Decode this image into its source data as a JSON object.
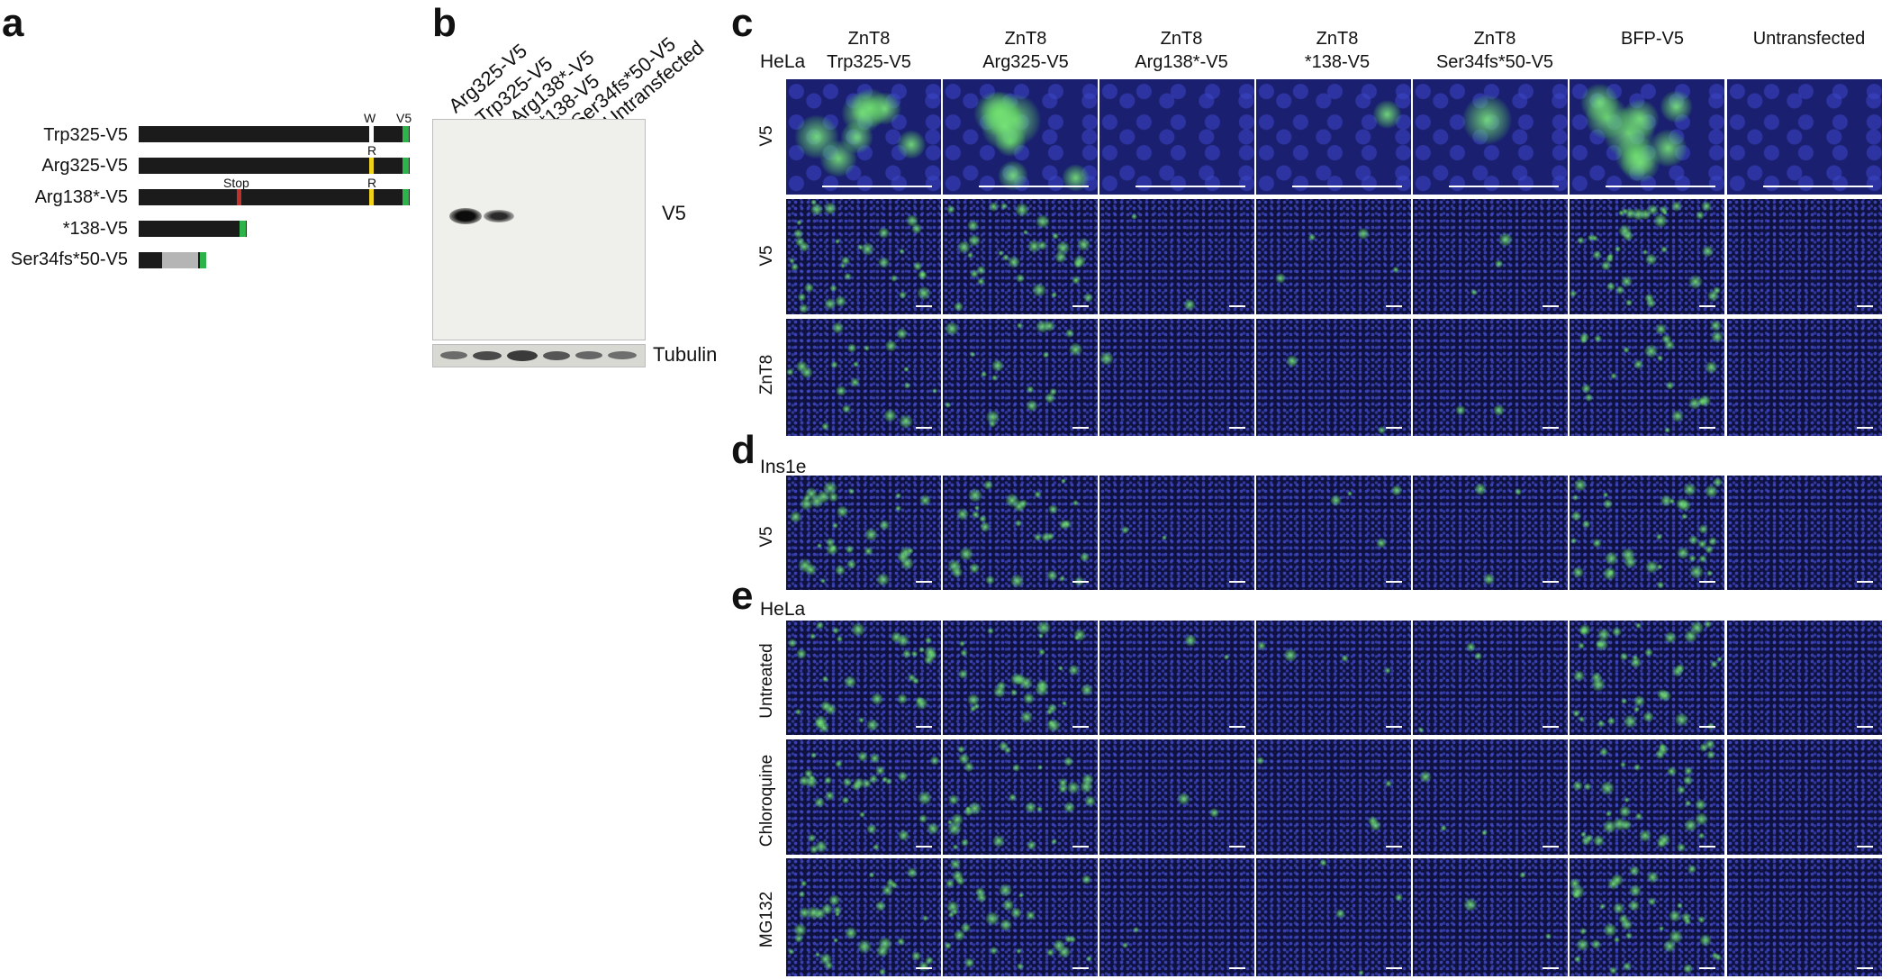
{
  "panel_letters": {
    "a": "a",
    "b": "b",
    "c": "c",
    "d": "d",
    "e": "e"
  },
  "panel_a": {
    "constructs": [
      {
        "label": "Trp325-V5"
      },
      {
        "label": "Arg325-V5"
      },
      {
        "label": "Arg138*-V5"
      },
      {
        "label": "*138-V5"
      },
      {
        "label": "Ser34fs*50-V5"
      }
    ],
    "marks": {
      "w": "W",
      "v5": "V5",
      "r1": "R",
      "stop": "Stop",
      "r2": "R"
    },
    "colors": {
      "bar": "#1b1b1b",
      "v5_tag": "#2db34a",
      "arg": "#f0d21a",
      "trp": "#ffffff",
      "stop": "#c0312b",
      "frameshift": "#b5b5b5"
    }
  },
  "panel_b": {
    "lanes": [
      "Arg325-V5",
      "Trp325-V5",
      "Arg138*-V5",
      "*138-V5",
      "Ser34fs*50-V5",
      "Untransfected"
    ],
    "blot_label": "V5",
    "loading_label": "Tubulin"
  },
  "panel_c": {
    "cell_line": "HeLa",
    "columns": [
      {
        "line1": "ZnT8",
        "line2": "Trp325-V5"
      },
      {
        "line1": "ZnT8",
        "line2": "Arg325-V5"
      },
      {
        "line1": "ZnT8",
        "line2": "Arg138*-V5"
      },
      {
        "line1": "ZnT8",
        "line2": "*138-V5"
      },
      {
        "line1": "ZnT8",
        "line2": "Ser34fs*50-V5"
      },
      {
        "line1": "",
        "line2": "BFP-V5"
      },
      {
        "line1": "",
        "line2": "Untransfected"
      }
    ],
    "rows": [
      "V5",
      "V5",
      "ZnT8"
    ]
  },
  "panel_d": {
    "cell_line": "Ins1e",
    "rows": [
      "V5"
    ]
  },
  "panel_e": {
    "cell_line": "HeLa",
    "rows": [
      "Untreated",
      "Chloroquine",
      "MG132"
    ]
  },
  "signal": [
    0.8,
    0.75,
    0.05,
    0.1,
    0.08,
    0.9,
    0.0
  ]
}
